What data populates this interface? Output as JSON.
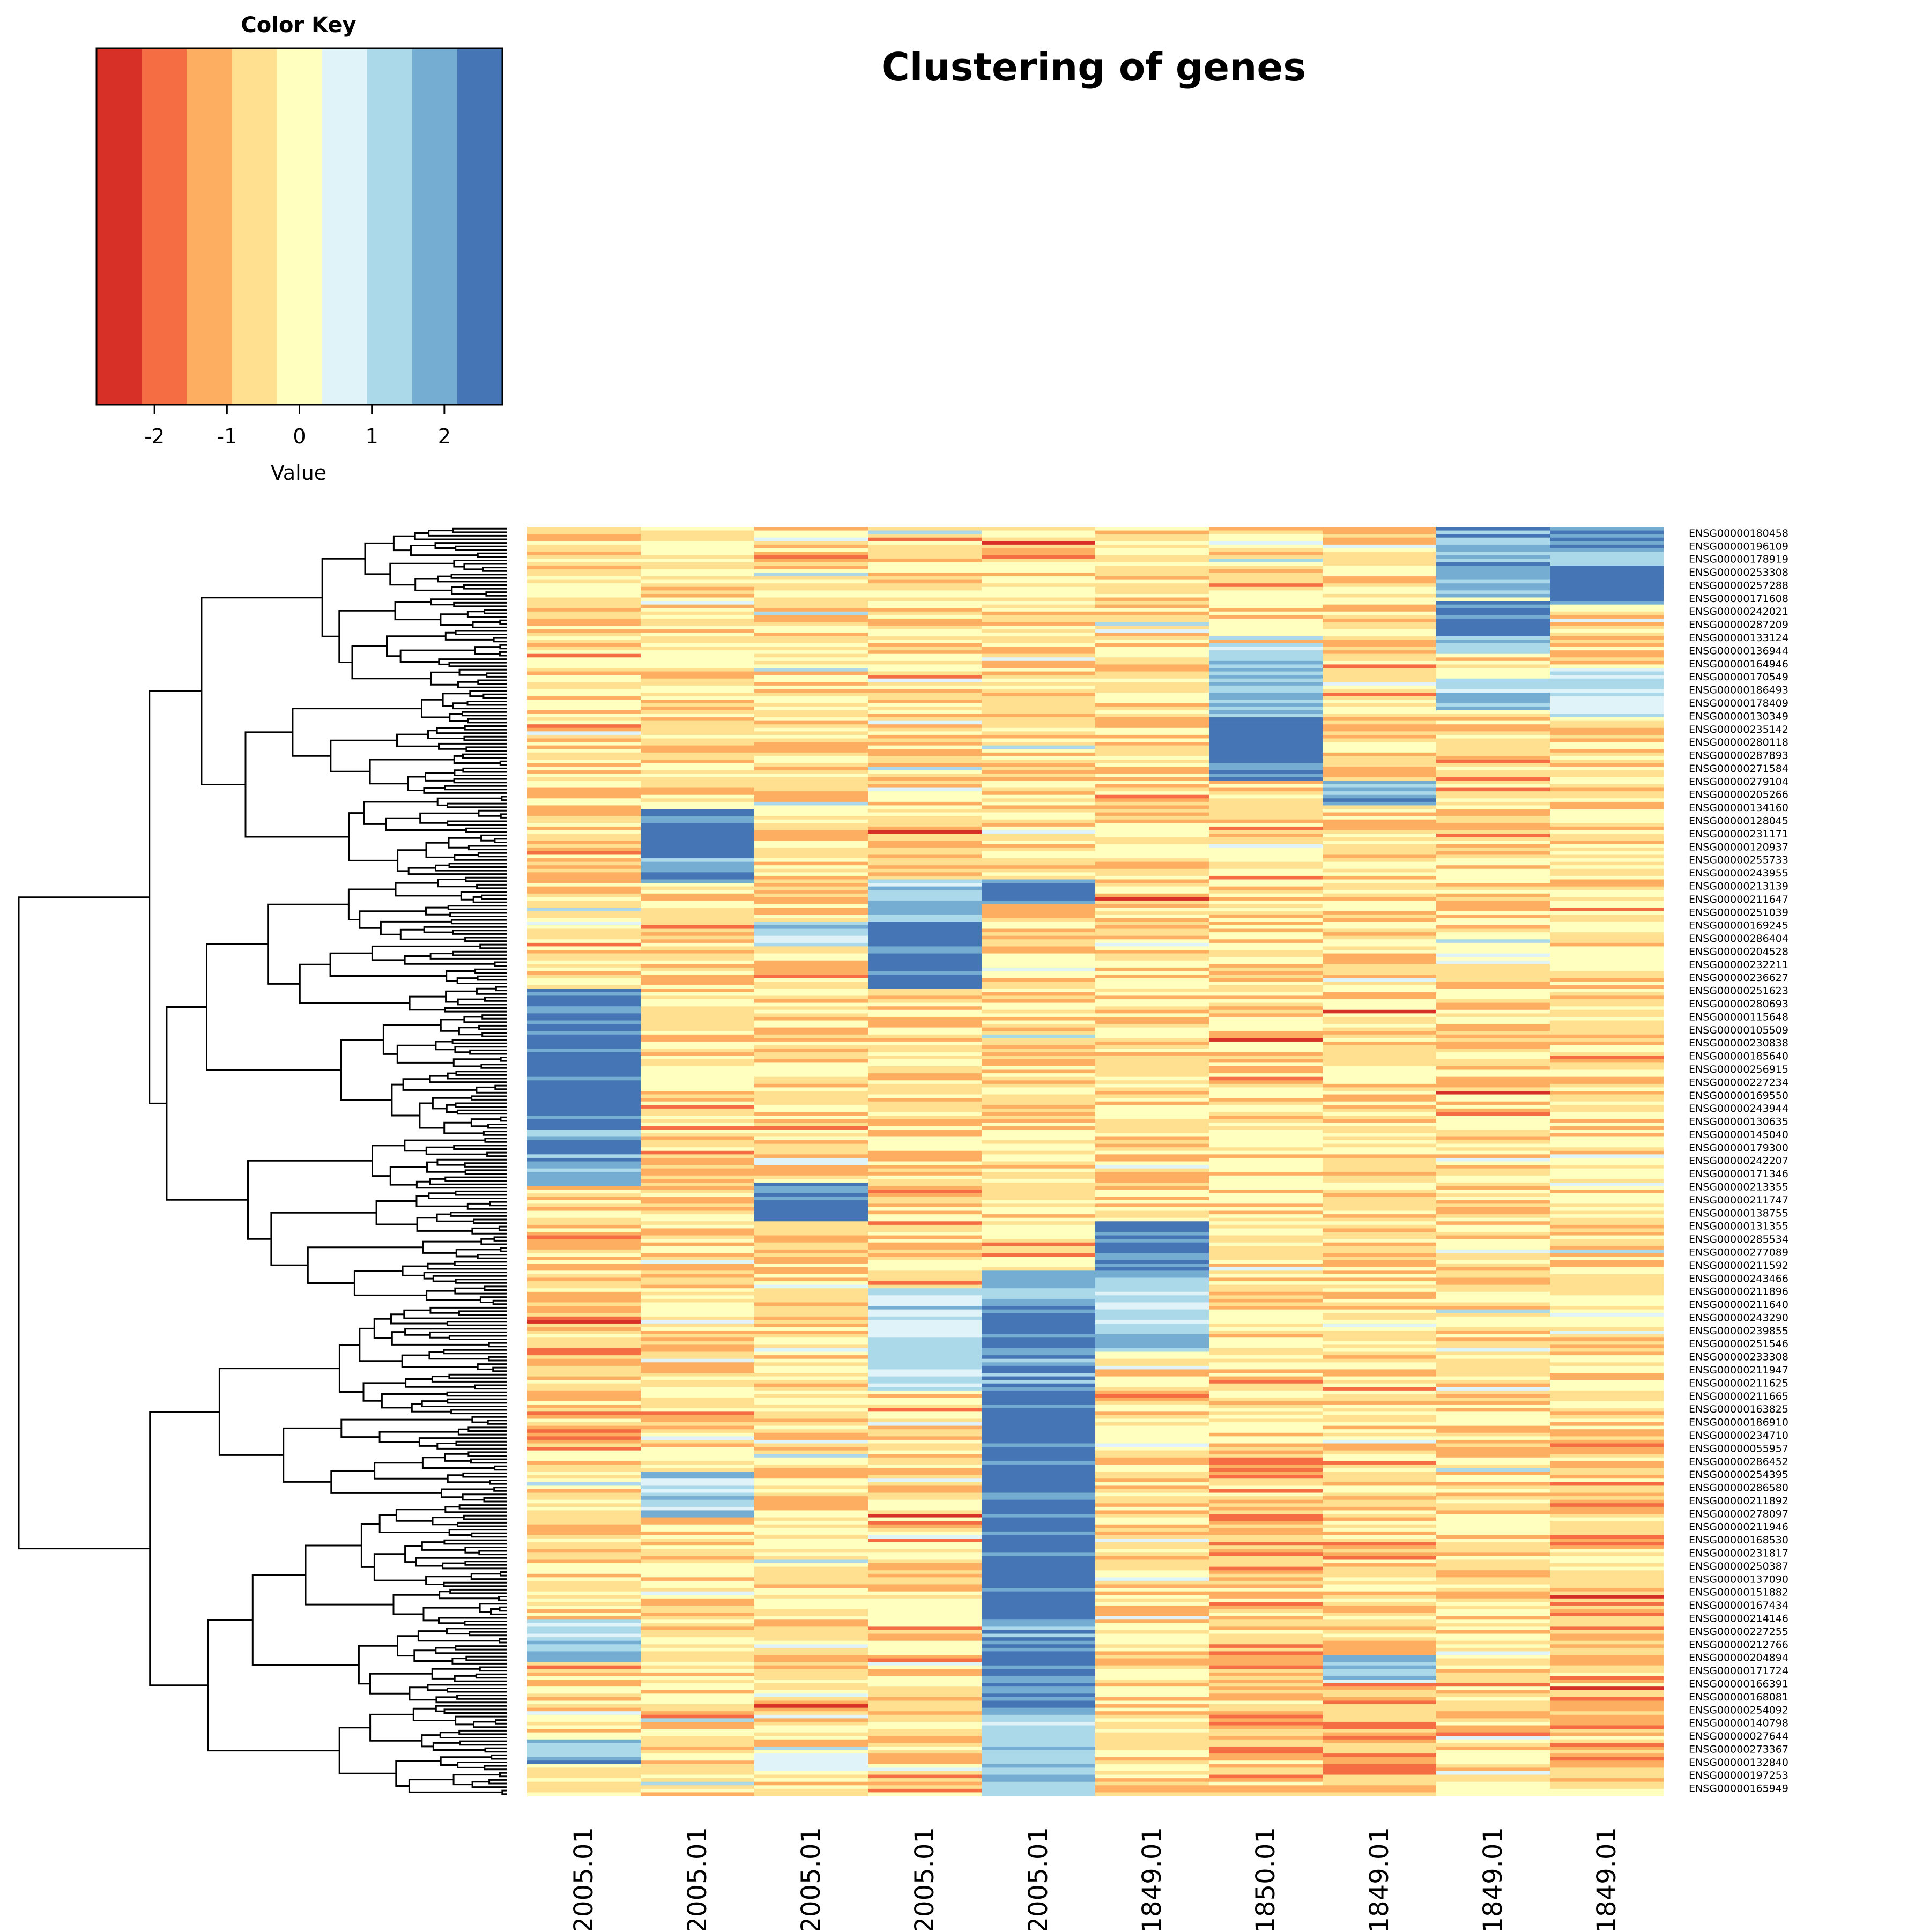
{
  "chart_data": {
    "type": "heatmap",
    "title": "Clustering of genes",
    "color_key": {
      "title": "Color Key",
      "xlabel": "Value",
      "ticks": [
        "-2",
        "-1",
        "0",
        "1",
        "2"
      ],
      "tick_values": [
        -2,
        -1,
        0,
        1,
        2
      ],
      "range": [
        -2.8,
        2.8
      ],
      "colors": [
        "#D73027",
        "#F46D43",
        "#FDAE61",
        "#FEE090",
        "#FFFFBF",
        "#E0F3F8",
        "#ABD9E9",
        "#74ADD1",
        "#4575B4"
      ]
    },
    "columns": [
      "…2005.01",
      "…2005.01",
      "…2005.01",
      "…2005.01",
      "…2005.01",
      "…1849.01",
      "…1850.01",
      "…1849.01",
      "…1849.01",
      "…1849.01"
    ],
    "n_rows": 360,
    "row_labels": [
      "ENSG00000180458",
      "ENSG00000196109",
      "ENSG00000178919",
      "ENSG00000253308",
      "ENSG00000257288",
      "ENSG00000171608",
      "ENSG00000242021",
      "ENSG00000287209",
      "ENSG00000133124",
      "ENSG00000136944",
      "ENSG00000164946",
      "ENSG00000170549",
      "ENSG00000186493",
      "ENSG00000178409",
      "ENSG00000130349",
      "ENSG00000235142",
      "ENSG00000280118",
      "ENSG00000287893",
      "ENSG00000271584",
      "ENSG00000279104",
      "ENSG00000205266",
      "ENSG00000134160",
      "ENSG00000128045",
      "ENSG00000231171",
      "ENSG00000120937",
      "ENSG00000255733",
      "ENSG00000243955",
      "ENSG00000213139",
      "ENSG00000211647",
      "ENSG00000251039",
      "ENSG00000169245",
      "ENSG00000286404",
      "ENSG00000204528",
      "ENSG00000232211",
      "ENSG00000236627",
      "ENSG00000251623",
      "ENSG00000280693",
      "ENSG00000115648",
      "ENSG00000105509",
      "ENSG00000230838",
      "ENSG00000185640",
      "ENSG00000256915",
      "ENSG00000227234",
      "ENSG00000169550",
      "ENSG00000243944",
      "ENSG00000130635",
      "ENSG00000145040",
      "ENSG00000179300",
      "ENSG00000242207",
      "ENSG00000171346",
      "ENSG00000213355",
      "ENSG00000211747",
      "ENSG00000138755",
      "ENSG00000131355",
      "ENSG00000285534",
      "ENSG00000277089",
      "ENSG00000211592",
      "ENSG00000243466",
      "ENSG00000211896",
      "ENSG00000211640",
      "ENSG00000243290",
      "ENSG00000239855",
      "ENSG00000251546",
      "ENSG00000233308",
      "ENSG00000211947",
      "ENSG00000211625",
      "ENSG00000211665",
      "ENSG00000163825",
      "ENSG00000186910",
      "ENSG00000234710",
      "ENSG00000055957",
      "ENSG00000286452",
      "ENSG00000254395",
      "ENSG00000286580",
      "ENSG00000211892",
      "ENSG00000278097",
      "ENSG00000211946",
      "ENSG00000168530",
      "ENSG00000231817",
      "ENSG00000250387",
      "ENSG00000137090",
      "ENSG00000151882",
      "ENSG00000167434",
      "ENSG00000214146",
      "ENSG00000227255",
      "ENSG00000212766",
      "ENSG00000204894",
      "ENSG00000171724",
      "ENSG00000166391",
      "ENSG00000168081",
      "ENSG00000254092",
      "ENSG00000140798",
      "ENSG00000027644",
      "ENSG00000273367",
      "ENSG00000132840",
      "ENSG00000197253",
      "ENSG00000165949"
    ],
    "row_label_step": 3.71,
    "block_notes": "Values are estimated from the color bands; high (blue) blocks per column by row-fraction ranges",
    "blocks": [
      {
        "col": 8,
        "from": 0.0,
        "to": 0.055,
        "value": 1.8
      },
      {
        "col": 9,
        "from": 0.0,
        "to": 0.03,
        "value": 1.8
      },
      {
        "col": 9,
        "from": 0.03,
        "to": 0.06,
        "value": 2.6
      },
      {
        "col": 8,
        "from": 0.058,
        "to": 0.085,
        "value": 2.6
      },
      {
        "col": 8,
        "from": 0.085,
        "to": 0.1,
        "value": 1.6
      },
      {
        "col": 6,
        "from": 0.093,
        "to": 0.15,
        "value": 1.5
      },
      {
        "col": 8,
        "from": 0.12,
        "to": 0.145,
        "value": 1.2
      },
      {
        "col": 9,
        "from": 0.11,
        "to": 0.15,
        "value": 1.0
      },
      {
        "col": 6,
        "from": 0.15,
        "to": 0.2,
        "value": 2.6
      },
      {
        "col": 7,
        "from": 0.2,
        "to": 0.22,
        "value": 1.7
      },
      {
        "col": 1,
        "from": 0.223,
        "to": 0.26,
        "value": 2.6
      },
      {
        "col": 1,
        "from": 0.26,
        "to": 0.28,
        "value": 1.7
      },
      {
        "col": 4,
        "from": 0.278,
        "to": 0.297,
        "value": 2.6
      },
      {
        "col": 3,
        "from": 0.278,
        "to": 0.31,
        "value": 1.5
      },
      {
        "col": 2,
        "from": 0.31,
        "to": 0.33,
        "value": 1.3
      },
      {
        "col": 3,
        "from": 0.31,
        "to": 0.365,
        "value": 2.6
      },
      {
        "col": 0,
        "from": 0.365,
        "to": 0.475,
        "value": 2.6
      },
      {
        "col": 0,
        "from": 0.475,
        "to": 0.52,
        "value": 2.0
      },
      {
        "col": 2,
        "from": 0.518,
        "to": 0.548,
        "value": 2.6
      },
      {
        "col": 5,
        "from": 0.548,
        "to": 0.585,
        "value": 2.4
      },
      {
        "col": 4,
        "from": 0.585,
        "to": 0.62,
        "value": 1.8
      },
      {
        "col": 5,
        "from": 0.585,
        "to": 0.65,
        "value": 1.2
      },
      {
        "col": 4,
        "from": 0.62,
        "to": 0.655,
        "value": 2.5
      },
      {
        "col": 3,
        "from": 0.6,
        "to": 0.68,
        "value": 1.0
      },
      {
        "col": 4,
        "from": 0.655,
        "to": 0.675,
        "value": 1.8
      },
      {
        "col": 4,
        "from": 0.675,
        "to": 0.745,
        "value": 2.6
      },
      {
        "col": 1,
        "from": 0.745,
        "to": 0.78,
        "value": 1.3
      },
      {
        "col": 4,
        "from": 0.745,
        "to": 0.86,
        "value": 2.6
      },
      {
        "col": 0,
        "from": 0.86,
        "to": 0.895,
        "value": 1.2
      },
      {
        "col": 4,
        "from": 0.86,
        "to": 0.875,
        "value": 1.8
      },
      {
        "col": 4,
        "from": 0.875,
        "to": 0.93,
        "value": 2.4
      },
      {
        "col": 7,
        "from": 0.89,
        "to": 0.91,
        "value": 1.3
      },
      {
        "col": 4,
        "from": 0.93,
        "to": 1.0,
        "value": 1.4
      },
      {
        "col": 0,
        "from": 0.955,
        "to": 0.975,
        "value": 1.8
      },
      {
        "col": 2,
        "from": 0.96,
        "to": 0.98,
        "value": 0.8
      }
    ],
    "dendrogram": {
      "side": "left",
      "leaves": 360
    }
  }
}
